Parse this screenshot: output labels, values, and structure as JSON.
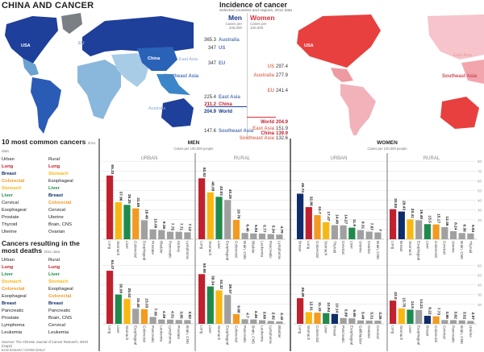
{
  "title": "CHINA AND CANCER",
  "colors": {
    "Lung": "#c0212f",
    "Stomach": "#f9b712",
    "Liver": "#1f8a4c",
    "Colorectal": "#f39a21",
    "Breast": "#0f2d6b",
    "other": "#a0a0a0",
    "men_map": "#1e3f9a",
    "women_map": "#e8403f"
  },
  "incidence": {
    "title": "Incidence of cancer",
    "subtitle": "Selected countries and regions, 2012 data",
    "men_label": "Men",
    "women_label": "Women",
    "unit": "Cases per 100,000",
    "men": [
      {
        "label": "Australia",
        "value": "365.3"
      },
      {
        "label": "US",
        "value": "347"
      },
      {
        "label": "EU",
        "value": "347"
      },
      {
        "label": "East Asia",
        "value": "225.4"
      },
      {
        "label": "China",
        "value": "211.2"
      },
      {
        "label": "World",
        "value": "204.9"
      },
      {
        "label": "Southeast Asia",
        "value": "147.6"
      }
    ],
    "women": [
      {
        "label": "US",
        "value": "297.4"
      },
      {
        "label": "Australia",
        "value": "277.9"
      },
      {
        "label": "EU",
        "value": "241.4"
      },
      {
        "label": "World",
        "value": "204.9"
      },
      {
        "label": "East Asia",
        "value": "151.9"
      },
      {
        "label": "China",
        "value": "139.9"
      },
      {
        "label": "Southeast Asia",
        "value": "132.6"
      }
    ]
  },
  "map_labels": {
    "usa": "USA",
    "eu": "EU",
    "china": "China",
    "east_asia": "East Asia",
    "se_asia": "Southeast Asia",
    "australia": "Australia"
  },
  "left_panel": {
    "common_title": "10 most common cancers",
    "common_year": "2011 data",
    "deaths_title": "Cancers resulting in the most deaths",
    "deaths_year": "2011 data",
    "urban_label": "Urban",
    "rural_label": "Rural",
    "common_urban": [
      "Lung",
      "Breast",
      "Colorectal",
      "Stomach",
      "Liver",
      "Cervical",
      "Esophageal",
      "Prostate",
      "Thyroid",
      "Uterine"
    ],
    "common_rural": [
      "Lung",
      "Stomach",
      "Esophageal",
      "Liver",
      "Breast",
      "Colorectal",
      "Cervical",
      "Uterine",
      "Brain, CNS",
      "Ovarian"
    ],
    "deaths_urban": [
      "Lung",
      "Liver",
      "Stomach",
      "Colorectal",
      "Esophageal",
      "Breast",
      "Pancreatic",
      "Prostate",
      "Lymphoma",
      "Leukemia"
    ],
    "deaths_rural": [
      "Lung",
      "Liver",
      "Stomach",
      "Esophageal",
      "Colorectal",
      "Breast",
      "Pancreatic",
      "Brain, CNS",
      "Cervical",
      "Leukemia"
    ],
    "sources": "Sources: The Chinese Journal of Cancer Research, WHO (maps)",
    "credit": "KAN SASAKI / CHINA DAILY"
  },
  "charts_header": {
    "men": "MEN",
    "women": "WOMEN",
    "unit": "Cases per 100,000 people",
    "urban": "URBAN",
    "rural": "RURAL"
  },
  "chart_data": [
    {
      "type": "bar",
      "group": "incidence",
      "sex": "men",
      "area": "urban",
      "ylim": [
        0,
        80
      ],
      "yticks": [
        20,
        30,
        40,
        50,
        60,
        70,
        80
      ],
      "categories": [
        "Lung",
        "Stomach",
        "Liver",
        "Colorectal",
        "Esophageal",
        "Prostate",
        "Bladder",
        "Pancreatic",
        "Kidney",
        "Lymphoma"
      ],
      "values": [
        65.33,
        37.96,
        35.25,
        31.65,
        19.46,
        10.06,
        9.36,
        7.75,
        7.71,
        7.12
      ]
    },
    {
      "type": "bar",
      "group": "incidence",
      "sex": "men",
      "area": "rural",
      "ylim": [
        0,
        80
      ],
      "categories": [
        "Lung",
        "Stomach",
        "Liver",
        "Esophageal",
        "Colorectal",
        "Brain, CNS",
        "Bladder",
        "Leukemia",
        "Pancreatic",
        "Lymphoma"
      ],
      "values": [
        62.52,
        48.09,
        43.53,
        40.28,
        19.76,
        6.46,
        5.94,
        5.77,
        5.34,
        4.79
      ]
    },
    {
      "type": "bar",
      "group": "incidence",
      "sex": "women",
      "area": "urban",
      "ylim": [
        0,
        80
      ],
      "categories": [
        "Breast",
        "Lung",
        "Colorectal",
        "Stomach",
        "Thyroid",
        "Cervical",
        "Liver",
        "Uterine",
        "Ovarian",
        "Brain, CNS"
      ],
      "values": [
        46.74,
        32.98,
        24.7,
        17.47,
        14.46,
        14.27,
        11.9,
        9.31,
        7.87,
        7.0
      ]
    },
    {
      "type": "bar",
      "group": "incidence",
      "sex": "women",
      "area": "rural",
      "ylim": [
        0,
        80
      ],
      "categories": [
        "Lung",
        "Breast",
        "Stomach",
        "Esophageal",
        "Liver",
        "Colorectal",
        "Cervical",
        "Uterine",
        "Brain, CNS",
        "Thyroid"
      ],
      "values": [
        30.83,
        28.43,
        20.41,
        19.49,
        15.5,
        15.17,
        12.46,
        8.24,
        6.36,
        5.94
      ]
    },
    {
      "type": "bar",
      "group": "deaths",
      "sex": "men",
      "area": "urban",
      "ylim": [
        0,
        60
      ],
      "yticks": [
        20,
        30,
        40,
        50,
        60
      ],
      "categories": [
        "Lung",
        "Liver",
        "Stomach",
        "Esophageal",
        "Colorectal",
        "Pancreatic",
        "Leukemia",
        "Lymphoma",
        "Prostate",
        "Brain, CNS"
      ],
      "values": [
        54.47,
        30.09,
        25.52,
        15.48,
        15.03,
        7.08,
        4.39,
        4.31,
        3.95,
        3.82
      ]
    },
    {
      "type": "bar",
      "group": "deaths",
      "sex": "men",
      "area": "rural",
      "ylim": [
        0,
        60
      ],
      "categories": [
        "Lung",
        "Liver",
        "Stomach",
        "Esophageal",
        "Colorectal",
        "Pancreatic",
        "Brain, CNS",
        "Leukemia",
        "Lymphoma",
        "Bladder"
      ],
      "values": [
        50.98,
        38.34,
        34.32,
        29.57,
        9.88,
        4.7,
        4.46,
        3.68,
        2.92,
        2.42
      ]
    },
    {
      "type": "bar",
      "group": "deaths",
      "sex": "women",
      "area": "urban",
      "ylim": [
        0,
        60
      ],
      "categories": [
        "Lung",
        "Stomach",
        "Colorectal",
        "Liver",
        "Breast",
        "Pancreatic",
        "Esophageal",
        "Gallbladder",
        "Ovarian",
        "Cervical"
      ],
      "values": [
        26.29,
        12.01,
        11.43,
        10.94,
        10.14,
        5.99,
        5.65,
        3.49,
        3.31,
        3.26
      ]
    },
    {
      "type": "bar",
      "group": "deaths",
      "sex": "women",
      "area": "rural",
      "ylim": [
        0,
        60
      ],
      "categories": [
        "Lung",
        "Stomach",
        "Liver",
        "Esophageal",
        "Breast",
        "Colorectal",
        "Cervical",
        "Pancreatic",
        "Brain, CNS",
        "Uterine"
      ],
      "values": [
        23.8,
        15.75,
        14.5,
        14.21,
        8.22,
        7.73,
        3.86,
        3.82,
        3.52,
        2.97
      ]
    }
  ]
}
